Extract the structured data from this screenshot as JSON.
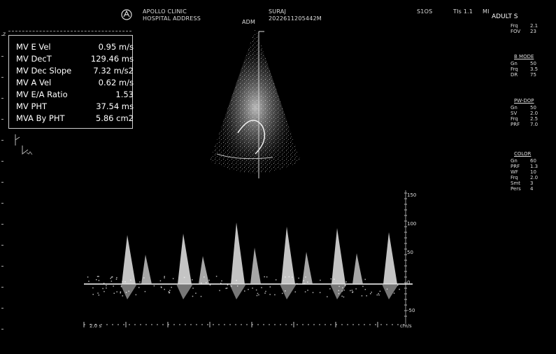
{
  "header": {
    "hospital": "APOLLO CLINIC",
    "department": "HOSPITAL ADDRESS",
    "adm": "ADM",
    "patient_name": "SURAJ",
    "patient_id": "2022611205442M",
    "probe": "S1OS",
    "ti": "TIs 1.1",
    "mi": "MI",
    "mode": "ADULT S"
  },
  "measurements": [
    {
      "label": "MV E Vel",
      "value": "0.95 m/s"
    },
    {
      "label": "MV DecT",
      "value": "129.46 ms"
    },
    {
      "label": "MV Dec Slope",
      "value": "7.32 m/s2"
    },
    {
      "label": "MV A Vel",
      "value": "0.62 m/s"
    },
    {
      "label": "MV E/A Ratio",
      "value": "1.53"
    },
    {
      "label": "MV PHT",
      "value": "37.54 ms"
    },
    {
      "label": "MVA By PHT",
      "value": "5.86 cm2"
    }
  ],
  "right_panel": {
    "section1": {
      "title": "ADULT S",
      "rows": [
        {
          "k": "Frq",
          "v": "2.1"
        },
        {
          "k": "FOV",
          "v": "23"
        }
      ]
    },
    "section2": {
      "title": "B MODE",
      "rows": [
        {
          "k": "Gn",
          "v": "50"
        },
        {
          "k": "Frq",
          "v": "3.5"
        },
        {
          "k": "DR",
          "v": "75"
        }
      ]
    },
    "section3": {
      "title": "PW-DOP",
      "rows": [
        {
          "k": "Gn",
          "v": "50"
        },
        {
          "k": "SV",
          "v": "2.0"
        },
        {
          "k": "Frq",
          "v": "2.5"
        },
        {
          "k": "PRF",
          "v": "7.0"
        }
      ]
    },
    "section4": {
      "title": "COLOR",
      "rows": [
        {
          "k": "Gn",
          "v": "60"
        },
        {
          "k": "PRF",
          "v": "1.3"
        },
        {
          "k": "WF",
          "v": "10"
        },
        {
          "k": "Frq",
          "v": "2.0"
        },
        {
          "k": "Smt",
          "v": "3"
        },
        {
          "k": "Pers",
          "v": "4"
        }
      ]
    }
  },
  "doppler_scale": {
    "labels": [
      "150",
      "100",
      "50",
      "0",
      "-50"
    ],
    "unit": "cm/s"
  },
  "time_axis": {
    "label": "2.0 s"
  }
}
